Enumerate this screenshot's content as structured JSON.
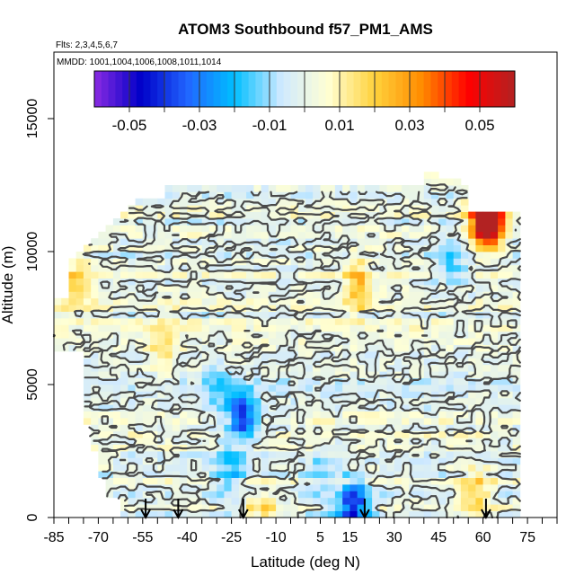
{
  "chart_data": {
    "type": "heatmap",
    "title": "ATOM3 Southbound f57_PM1_AMS",
    "flights_text": "Flts: 2,3,4,5,6,7",
    "mmdd_text": "MMDD: 1001,1004,1006,1008,1011,1014",
    "xlabel": "Latitude (deg N)",
    "ylabel": "Altitude (m)",
    "xlim": [
      -85,
      85
    ],
    "ylim": [
      0,
      17500
    ],
    "x_ticks": [
      -85,
      -70,
      -55,
      -40,
      -25,
      -10,
      5,
      15,
      30,
      45,
      60,
      75
    ],
    "y_ticks": [
      0,
      5000,
      10000,
      15000
    ],
    "colorbar": {
      "range": [
        -0.06,
        0.06
      ],
      "ticks": [
        -0.05,
        -0.03,
        -0.01,
        0.01,
        0.03,
        0.05
      ],
      "tick_labels": [
        "-0.05",
        "-0.03",
        "-0.01",
        "0.01",
        "0.03",
        "0.05"
      ],
      "colors": [
        "#8a2be2",
        "#0000c8",
        "#2166ff",
        "#00bfff",
        "#cfe9ff",
        "#ffffd4",
        "#ffd23c",
        "#ff8c00",
        "#ff0000",
        "#b22222"
      ]
    },
    "contour_levels": [
      0
    ],
    "arrow_latitudes": [
      -54,
      -43,
      -21,
      20,
      61
    ],
    "data_extent": {
      "lat": [
        -85,
        72
      ],
      "alt": [
        0,
        12900
      ]
    },
    "features": [
      {
        "lat": 61,
        "alt": 11100,
        "value": 0.05
      },
      {
        "lat": 62,
        "alt": 11300,
        "value": 0.055
      },
      {
        "lat": -21,
        "alt": 3800,
        "value": -0.04
      },
      {
        "lat": 15,
        "alt": 200,
        "value": -0.02
      },
      {
        "lat": 17,
        "alt": 600,
        "value": -0.025
      },
      {
        "lat": -30,
        "alt": 4800,
        "value": -0.015
      },
      {
        "lat": 50,
        "alt": 9700,
        "value": -0.015
      },
      {
        "lat": -78,
        "alt": 8800,
        "value": 0.02
      },
      {
        "lat": 18,
        "alt": 8700,
        "value": 0.025
      },
      {
        "lat": -48,
        "alt": 6500,
        "value": 0.015
      },
      {
        "lat": 58,
        "alt": 900,
        "value": 0.02
      },
      {
        "lat": -15,
        "alt": 200,
        "value": 0.015
      },
      {
        "lat": -25,
        "alt": 1800,
        "value": -0.018
      },
      {
        "lat": 5,
        "alt": 1500,
        "value": -0.012
      }
    ]
  }
}
